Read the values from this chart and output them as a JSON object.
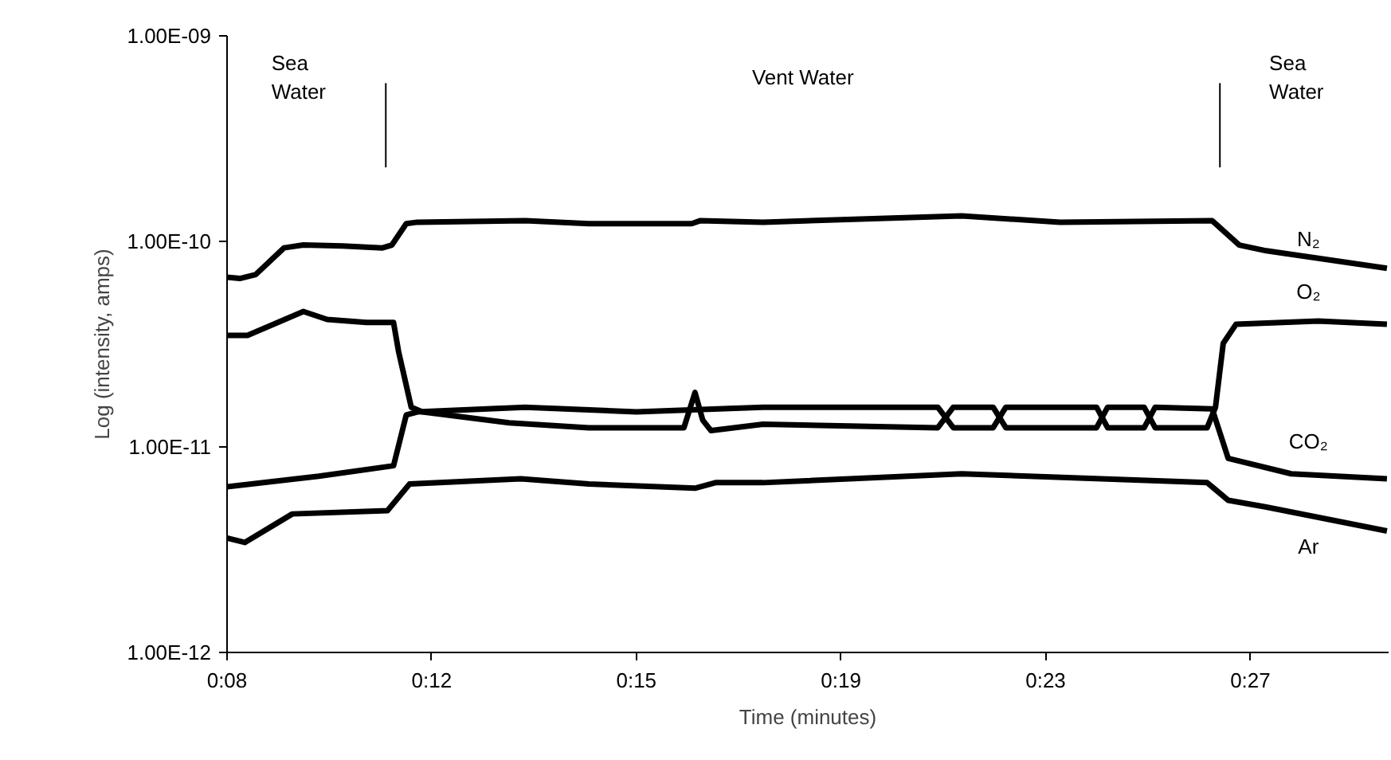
{
  "chart_data": {
    "type": "line",
    "xlabel": "Time (minutes)",
    "ylabel": "Log (intensity, amps)",
    "log": "y",
    "grid": false,
    "legend": false,
    "marker": "none",
    "line_style": "solid",
    "xlim": [
      8,
      29
    ],
    "xticks": [
      {
        "value": 8,
        "label": "0:08"
      },
      {
        "value": 11.7,
        "label": "0:12"
      },
      {
        "value": 15.4,
        "label": "0:15"
      },
      {
        "value": 19.1,
        "label": "0:19"
      },
      {
        "value": 22.8,
        "label": "0:23"
      },
      {
        "value": 26.5,
        "label": "0:27"
      }
    ],
    "ylim": [
      1e-12,
      1e-09
    ],
    "yticks": [
      {
        "value": 1e-12,
        "label": "1.00E-12"
      },
      {
        "value": 1e-11,
        "label": "1.00E-11"
      },
      {
        "value": 1e-10,
        "label": "1.00E-10"
      },
      {
        "value": 1e-09,
        "label": "1.00E-09"
      }
    ],
    "ref_lines": [
      {
        "axis": "x",
        "value": 10.87,
        "label": null
      },
      {
        "axis": "x",
        "value": 25.95,
        "label": null
      }
    ],
    "annotations": [
      "Sea Water",
      "Vent Water",
      "Sea Water"
    ],
    "series": [
      {
        "name": "N₂",
        "color": "#000000",
        "x": [
          8,
          8.23,
          8.52,
          9.03,
          9.38,
          10.09,
          10.81,
          10.98,
          11.24,
          11.44,
          13.39,
          14.54,
          16.4,
          16.55,
          17.69,
          21.28,
          23.06,
          25.81,
          26.3,
          26.79,
          28.97
        ],
        "values": [
          6.7e-11,
          6.6e-11,
          6.9e-11,
          9.3e-11,
          9.6e-11,
          9.5e-11,
          9.3e-11,
          9.6e-11,
          1.22e-10,
          1.24e-10,
          1.26e-10,
          1.22e-10,
          1.22e-10,
          1.26e-10,
          1.24e-10,
          1.33e-10,
          1.24e-10,
          1.26e-10,
          9.6e-11,
          9e-11,
          7.4e-11
        ]
      },
      {
        "name": "O₂",
        "color": "#000000",
        "x": [
          8,
          8.37,
          9.38,
          9.81,
          10.52,
          11.01,
          11.1,
          11.33,
          11.53,
          13.1,
          14.54,
          16.26,
          16.46,
          16.6,
          16.75,
          17.69,
          20.85,
          21.13,
          21.85,
          22.08,
          23.72,
          23.92,
          24.58,
          24.78,
          25.72,
          25.87,
          26.01,
          26.24,
          27.73,
          28.97
        ],
        "values": [
          3.49e-11,
          3.49e-11,
          4.56e-11,
          4.17e-11,
          4.03e-11,
          4.03e-11,
          2.92e-11,
          1.56e-11,
          1.48e-11,
          1.31e-11,
          1.24e-11,
          1.24e-11,
          1.84e-11,
          1.35e-11,
          1.2e-11,
          1.29e-11,
          1.24e-11,
          1.56e-11,
          1.56e-11,
          1.24e-11,
          1.24e-11,
          1.56e-11,
          1.56e-11,
          1.24e-11,
          1.24e-11,
          1.56e-11,
          3.19e-11,
          3.95e-11,
          4.1e-11,
          3.95e-11
        ]
      },
      {
        "name": "CO₂",
        "color": "#000000",
        "x": [
          8,
          9.66,
          11.01,
          11.24,
          11.44,
          13.39,
          15.4,
          17.69,
          20.85,
          21.13,
          21.85,
          22.08,
          23.72,
          23.92,
          24.58,
          24.78,
          25.81,
          26.1,
          27.24,
          28.97
        ],
        "values": [
          6.4e-12,
          7.2e-12,
          8.1e-12,
          1.43e-11,
          1.48e-11,
          1.56e-11,
          1.48e-11,
          1.56e-11,
          1.56e-11,
          1.24e-11,
          1.24e-11,
          1.56e-11,
          1.56e-11,
          1.24e-11,
          1.24e-11,
          1.56e-11,
          1.53e-11,
          8.8e-12,
          7.4e-12,
          7e-12
        ]
      },
      {
        "name": "Ar",
        "color": "#000000",
        "x": [
          8,
          8.32,
          9.18,
          10.9,
          11.3,
          13.31,
          14.54,
          16.46,
          16.83,
          17.69,
          21.28,
          25.72,
          26.1,
          26.79,
          28.97
        ],
        "values": [
          3.6e-12,
          3.43e-12,
          4.72e-12,
          4.9e-12,
          6.6e-12,
          7e-12,
          6.6e-12,
          6.3e-12,
          6.7e-12,
          6.7e-12,
          7.4e-12,
          6.7e-12,
          5.5e-12,
          5.1e-12,
          3.9e-12
        ]
      }
    ]
  }
}
